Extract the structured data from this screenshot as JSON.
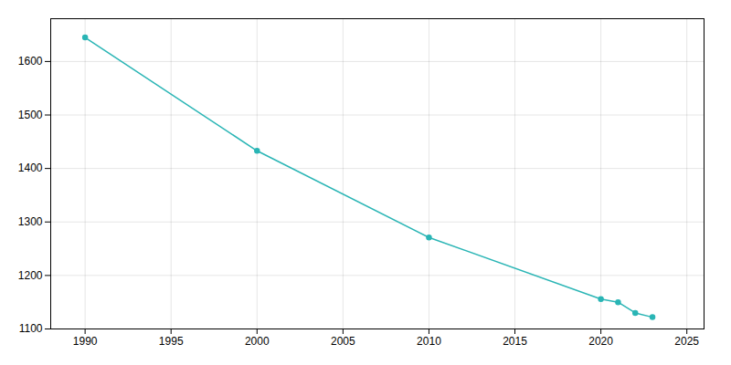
{
  "chart_data": {
    "type": "line",
    "x": [
      1990,
      2000,
      2010,
      2020,
      2021,
      2022,
      2023
    ],
    "values": [
      1645,
      1433,
      1271,
      1156,
      1150,
      1130,
      1122
    ],
    "color": "#2ab5b5",
    "marker": "circle",
    "xlim": [
      1988,
      2026
    ],
    "xticks": [
      1990,
      1995,
      2000,
      2005,
      2010,
      2015,
      2020,
      2025
    ],
    "ylim": [
      1100,
      1680
    ],
    "yticks": [
      1100,
      1200,
      1300,
      1400,
      1500,
      1600
    ],
    "grid": true
  }
}
